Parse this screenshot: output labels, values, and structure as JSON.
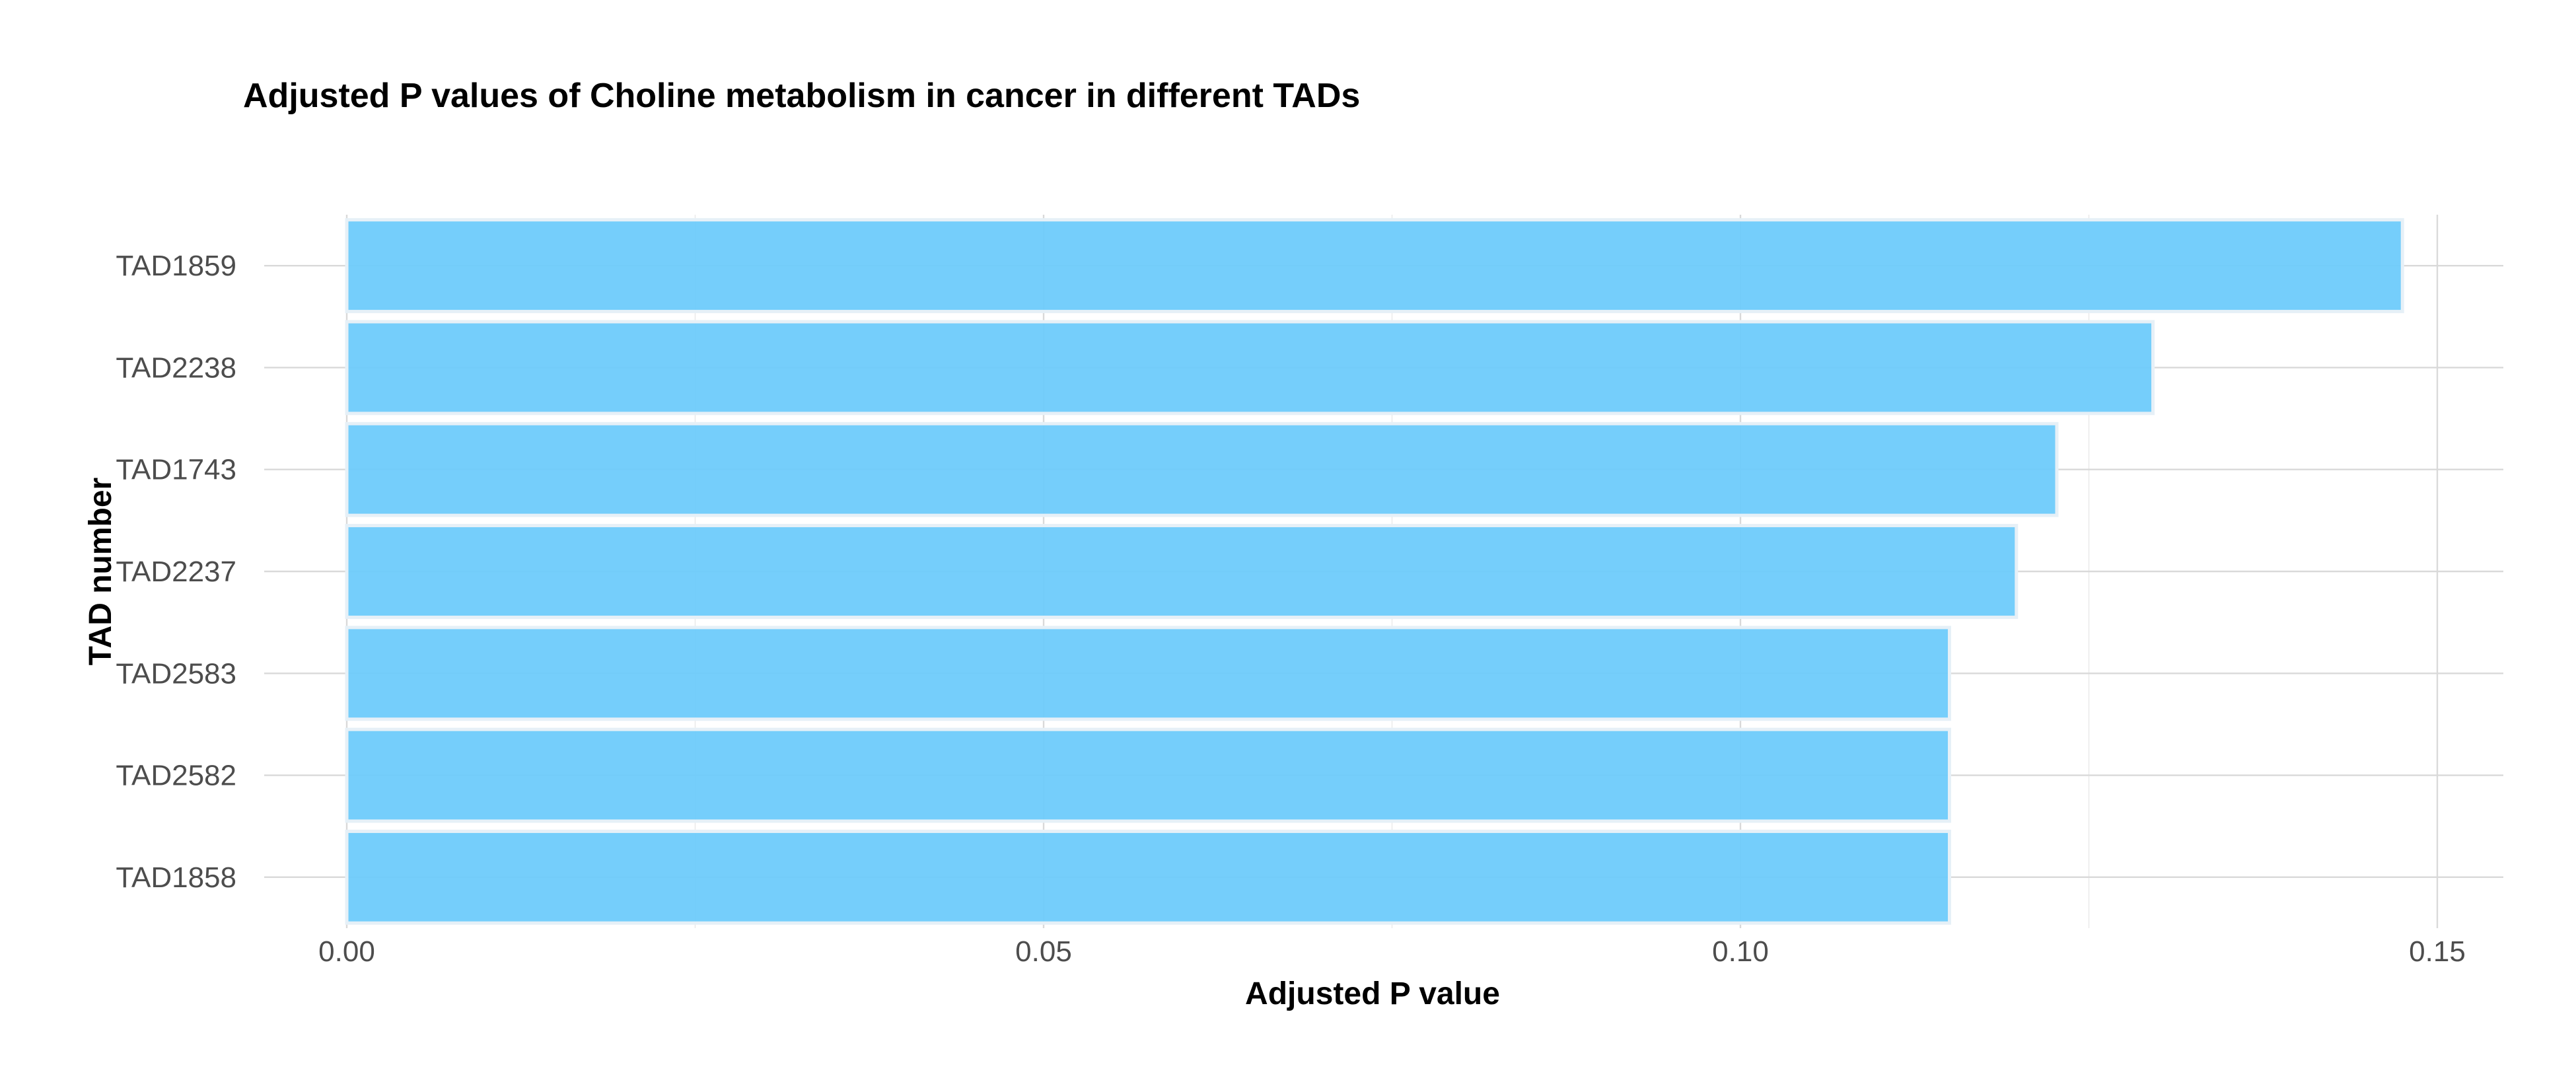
{
  "chart_data": {
    "type": "bar",
    "orientation": "horizontal",
    "title": "Adjusted P values of Choline metabolism in cancer in different TADs",
    "xlabel": "Adjusted P value",
    "ylabel": "TAD number",
    "categories": [
      "TAD1859",
      "TAD2238",
      "TAD1743",
      "TAD2237",
      "TAD2583",
      "TAD2582",
      "TAD1858"
    ],
    "values": [
      0.1475,
      0.1296,
      0.1227,
      0.1198,
      0.115,
      0.115,
      0.115
    ],
    "xlim": [
      0,
      0.155
    ],
    "xticks": [
      {
        "value": 0,
        "label": "0.00"
      },
      {
        "value": 0.05,
        "label": "0.05"
      },
      {
        "value": 0.1,
        "label": "0.10"
      },
      {
        "value": 0.15,
        "label": "0.15"
      }
    ],
    "x_minor_ticks": [
      0.025,
      0.075,
      0.125
    ],
    "grid": true,
    "legend": "none",
    "colors": {
      "bar_fill": "#6ECBFB",
      "bar_stroke": "#E6F0F7",
      "grid": "#D9D9D9"
    }
  }
}
